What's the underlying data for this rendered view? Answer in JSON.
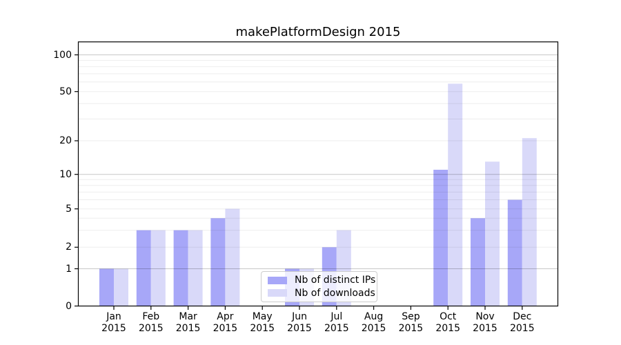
{
  "chart_data": {
    "type": "bar",
    "title": "makePlatformDesign 2015",
    "categories": [
      "Jan",
      "Feb",
      "Mar",
      "Apr",
      "May",
      "Jun",
      "Jul",
      "Aug",
      "Sep",
      "Oct",
      "Nov",
      "Dec"
    ],
    "x_tick_second_line": "2015",
    "series": [
      {
        "name": "Nb of distinct IPs",
        "color": "#a7a7f8",
        "values": [
          1,
          3,
          3,
          4,
          0,
          1,
          2,
          0,
          0,
          11,
          4,
          6
        ]
      },
      {
        "name": "Nb of downloads",
        "color": "#d9d9f9",
        "values": [
          1,
          3,
          3,
          5,
          0,
          1,
          3,
          0,
          0,
          58,
          13,
          21
        ]
      }
    ],
    "xlabel": "",
    "ylabel": "",
    "y_ticks": [
      0,
      1,
      2,
      5,
      10,
      20,
      50,
      100
    ],
    "y_minor_gridlines": [
      2,
      3,
      4,
      5,
      6,
      7,
      8,
      9,
      20,
      30,
      40,
      50,
      60,
      70,
      80,
      90
    ],
    "y_major_gridlines": [
      1,
      10,
      100
    ],
    "y_scale": "log above 1, linear 0-1",
    "ylim": [
      0,
      128
    ],
    "grid": true,
    "legend_position": "lower center"
  },
  "colors": {
    "bar_distinct_ips": "#a7a7f8",
    "bar_downloads": "#d9d9f9",
    "grid_major": "rgba(0,0,0,0.22)",
    "grid_minor": "rgba(0,0,0,0.07)",
    "spine": "#000000",
    "legend_border": "#cccccc",
    "text": "#000000"
  }
}
